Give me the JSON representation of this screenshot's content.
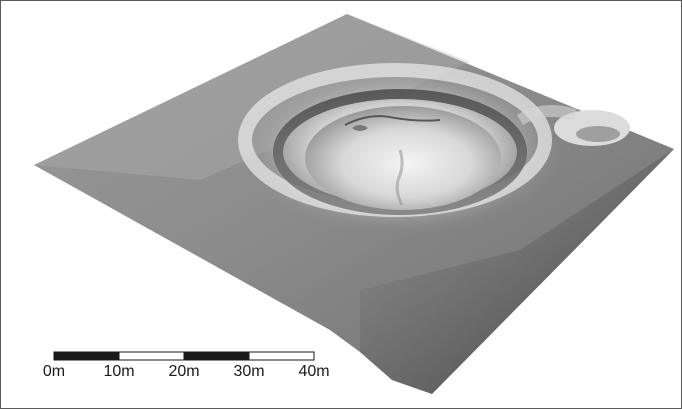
{
  "scale_bar": {
    "labels": [
      "0m",
      "10m",
      "20m",
      "30m",
      "40m"
    ],
    "segment_colors": [
      "#1a1a1a",
      "#ffffff",
      "#1a1a1a",
      "#ffffff"
    ]
  }
}
